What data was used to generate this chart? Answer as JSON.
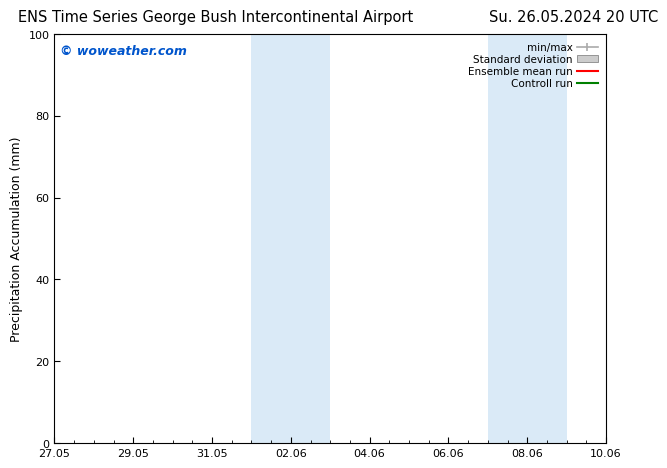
{
  "title_left": "ENS Time Series George Bush Intercontinental Airport",
  "title_right": "Su. 26.05.2024 20 UTC",
  "ylabel": "Precipitation Accumulation (mm)",
  "watermark": "© woweather.com",
  "watermark_color": "#0055cc",
  "ylim": [
    0,
    100
  ],
  "yticks": [
    0,
    20,
    40,
    60,
    80,
    100
  ],
  "x_start_num": 0,
  "x_end_num": 14,
  "xtick_labels": [
    "27.05",
    "29.05",
    "31.05",
    "02.06",
    "04.06",
    "06.06",
    "08.06",
    "10.06"
  ],
  "xtick_positions": [
    0,
    2,
    4,
    6,
    8,
    10,
    12,
    14
  ],
  "shaded_regions": [
    {
      "x_start": 5.0,
      "x_end": 7.0,
      "color": "#daeaf7"
    },
    {
      "x_start": 11.0,
      "x_end": 13.0,
      "color": "#daeaf7"
    }
  ],
  "legend_entries": [
    {
      "label": "min/max",
      "color": "#aaaaaa",
      "style": "errbar"
    },
    {
      "label": "Standard deviation",
      "color": "#cccccc",
      "style": "box"
    },
    {
      "label": "Ensemble mean run",
      "color": "#ff0000",
      "style": "line"
    },
    {
      "label": "Controll run",
      "color": "#008000",
      "style": "line"
    }
  ],
  "bg_color": "#ffffff",
  "plot_bg_color": "#ffffff",
  "title_fontsize": 10.5,
  "axis_fontsize": 9,
  "tick_fontsize": 8,
  "watermark_fontsize": 9
}
